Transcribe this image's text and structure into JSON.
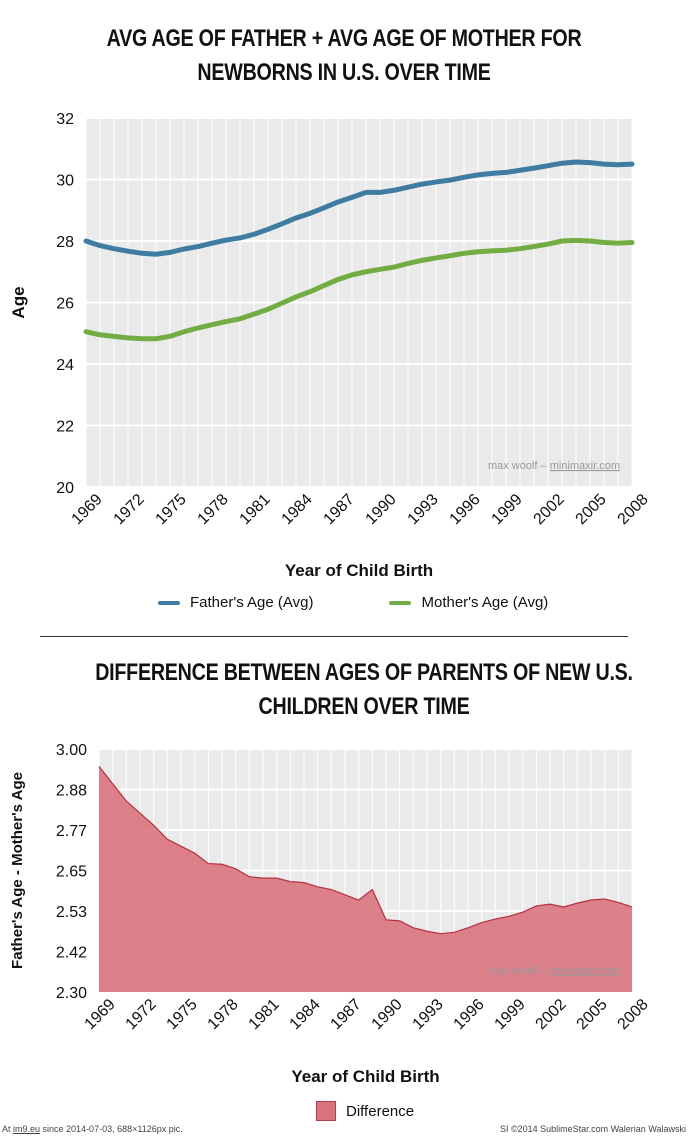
{
  "charts": [
    {
      "title_line1": "AVG AGE OF FATHER + AVG AGE OF MOTHER FOR",
      "title_line2": "NEWBORNS IN U.S. OVER TIME",
      "watermark_text": "max woolf – ",
      "watermark_link": "minimaxir.com",
      "legend": [
        "Father's Age (Avg)",
        "Mother's Age (Avg)"
      ]
    },
    {
      "title_line1": "DIFFERENCE BETWEEN AGES OF PARENTS OF NEW U.S.",
      "title_line2": "CHILDREN OVER TIME",
      "watermark_text": "max woolf – ",
      "watermark_link": "minimaxir.com",
      "legend": [
        "Difference"
      ]
    }
  ],
  "colors": {
    "father": "#3e7ca1",
    "mother": "#72ad44",
    "difference_fill": "#d9747e",
    "difference_line": "#b8303f",
    "plot_bg": "#eaeaea",
    "grid": "#ffffff"
  },
  "chart_data": [
    {
      "type": "line",
      "title": "AVG AGE OF FATHER + AVG AGE OF MOTHER FOR NEWBORNS IN U.S. OVER TIME",
      "xlabel": "Year of Child Birth",
      "ylabel": "Age",
      "x": [
        1969,
        1970,
        1971,
        1972,
        1973,
        1974,
        1975,
        1976,
        1977,
        1978,
        1979,
        1980,
        1981,
        1982,
        1983,
        1984,
        1985,
        1986,
        1987,
        1988,
        1989,
        1990,
        1991,
        1992,
        1993,
        1994,
        1995,
        1996,
        1997,
        1998,
        1999,
        2000,
        2001,
        2002,
        2003,
        2004,
        2005,
        2006,
        2007,
        2008
      ],
      "xticks": [
        "1969",
        "1972",
        "1975",
        "1978",
        "1981",
        "1984",
        "1987",
        "1990",
        "1993",
        "1996",
        "1999",
        "2002",
        "2005",
        "2008"
      ],
      "yticks": [
        "20",
        "22",
        "24",
        "26",
        "28",
        "30",
        "32"
      ],
      "ylim": [
        20,
        32
      ],
      "grid": true,
      "legend_position": "bottom",
      "series": [
        {
          "name": "Father's Age (Avg)",
          "values": [
            28.0,
            27.85,
            27.75,
            27.67,
            27.6,
            27.57,
            27.63,
            27.74,
            27.82,
            27.93,
            28.03,
            28.1,
            28.22,
            28.38,
            28.56,
            28.75,
            28.9,
            29.08,
            29.27,
            29.42,
            29.58,
            29.58,
            29.65,
            29.75,
            29.85,
            29.92,
            29.98,
            30.07,
            30.15,
            30.2,
            30.23,
            30.3,
            30.37,
            30.45,
            30.53,
            30.57,
            30.55,
            30.5,
            30.48,
            30.5
          ]
        },
        {
          "name": "Mother's Age (Avg)",
          "values": [
            25.05,
            24.95,
            24.9,
            24.85,
            24.82,
            24.82,
            24.9,
            25.05,
            25.17,
            25.28,
            25.38,
            25.47,
            25.62,
            25.78,
            25.98,
            26.18,
            26.35,
            26.55,
            26.75,
            26.9,
            27.0,
            27.08,
            27.15,
            27.27,
            27.37,
            27.45,
            27.52,
            27.6,
            27.65,
            27.68,
            27.7,
            27.75,
            27.82,
            27.9,
            28.0,
            28.02,
            28.0,
            27.95,
            27.93,
            27.95
          ]
        }
      ]
    },
    {
      "type": "area",
      "title": "DIFFERENCE BETWEEN AGES OF PARENTS OF NEW U.S. CHILDREN OVER TIME",
      "xlabel": "Year of Child Birth",
      "ylabel": "Father's Age - Mother's Age",
      "x": [
        1969,
        1970,
        1971,
        1972,
        1973,
        1974,
        1975,
        1976,
        1977,
        1978,
        1979,
        1980,
        1981,
        1982,
        1983,
        1984,
        1985,
        1986,
        1987,
        1988,
        1989,
        1990,
        1991,
        1992,
        1993,
        1994,
        1995,
        1996,
        1997,
        1998,
        1999,
        2000,
        2001,
        2002,
        2003,
        2004,
        2005,
        2006,
        2007,
        2008
      ],
      "xticks": [
        "1969",
        "1972",
        "1975",
        "1978",
        "1981",
        "1984",
        "1987",
        "1990",
        "1993",
        "1996",
        "1999",
        "2002",
        "2005",
        "2008"
      ],
      "yticks": [
        "2.30",
        "2.42",
        "2.53",
        "2.65",
        "2.77",
        "2.88",
        "3.00"
      ],
      "ylim": [
        2.3,
        3.0
      ],
      "grid": true,
      "legend_position": "bottom",
      "series": [
        {
          "name": "Difference",
          "values": [
            2.95,
            2.9,
            2.85,
            2.815,
            2.78,
            2.74,
            2.72,
            2.7,
            2.67,
            2.668,
            2.655,
            2.632,
            2.628,
            2.628,
            2.618,
            2.615,
            2.603,
            2.595,
            2.58,
            2.565,
            2.595,
            2.508,
            2.505,
            2.485,
            2.475,
            2.468,
            2.472,
            2.485,
            2.5,
            2.51,
            2.518,
            2.53,
            2.548,
            2.553,
            2.545,
            2.556,
            2.565,
            2.568,
            2.558,
            2.545
          ]
        }
      ]
    }
  ]
}
